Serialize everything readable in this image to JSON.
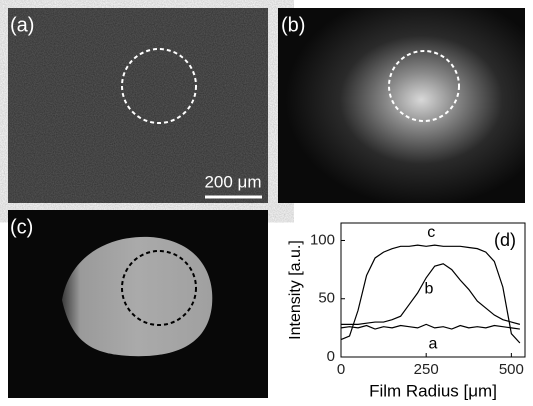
{
  "panels": {
    "a": {
      "label": "(a)",
      "scale_bar": "200 μm"
    },
    "b": {
      "label": "(b)"
    },
    "c": {
      "label": "(c)"
    }
  },
  "chart_data": {
    "type": "line",
    "panel_label": "(d)",
    "x_label": "Film Radius [μm]",
    "y_label": "Intensity [a.u.]",
    "x": [
      0,
      25,
      50,
      75,
      100,
      125,
      150,
      175,
      200,
      225,
      250,
      275,
      300,
      325,
      350,
      375,
      400,
      425,
      450,
      475,
      500,
      525
    ],
    "series": [
      {
        "name": "a",
        "color": "#000000",
        "values": [
          25,
          26,
          25,
          27,
          24,
          26,
          25,
          27,
          26,
          25,
          28,
          25,
          26,
          24,
          27,
          25,
          26,
          25,
          27,
          26,
          25,
          24
        ]
      },
      {
        "name": "b",
        "color": "#000000",
        "values": [
          28,
          28,
          28,
          29,
          30,
          30,
          32,
          35,
          45,
          55,
          68,
          78,
          80,
          75,
          66,
          58,
          48,
          42,
          36,
          32,
          30,
          28
        ]
      },
      {
        "name": "c",
        "color": "#000000",
        "values": [
          15,
          18,
          40,
          70,
          85,
          90,
          93,
          95,
          95,
          96,
          95,
          96,
          95,
          95,
          95,
          94,
          93,
          90,
          82,
          60,
          20,
          12
        ]
      }
    ],
    "xlim": [
      0,
      540
    ],
    "xticks": [
      0,
      250,
      500
    ],
    "ylim": [
      0,
      115
    ],
    "yticks": [
      0,
      50,
      100
    ],
    "grid": false
  }
}
